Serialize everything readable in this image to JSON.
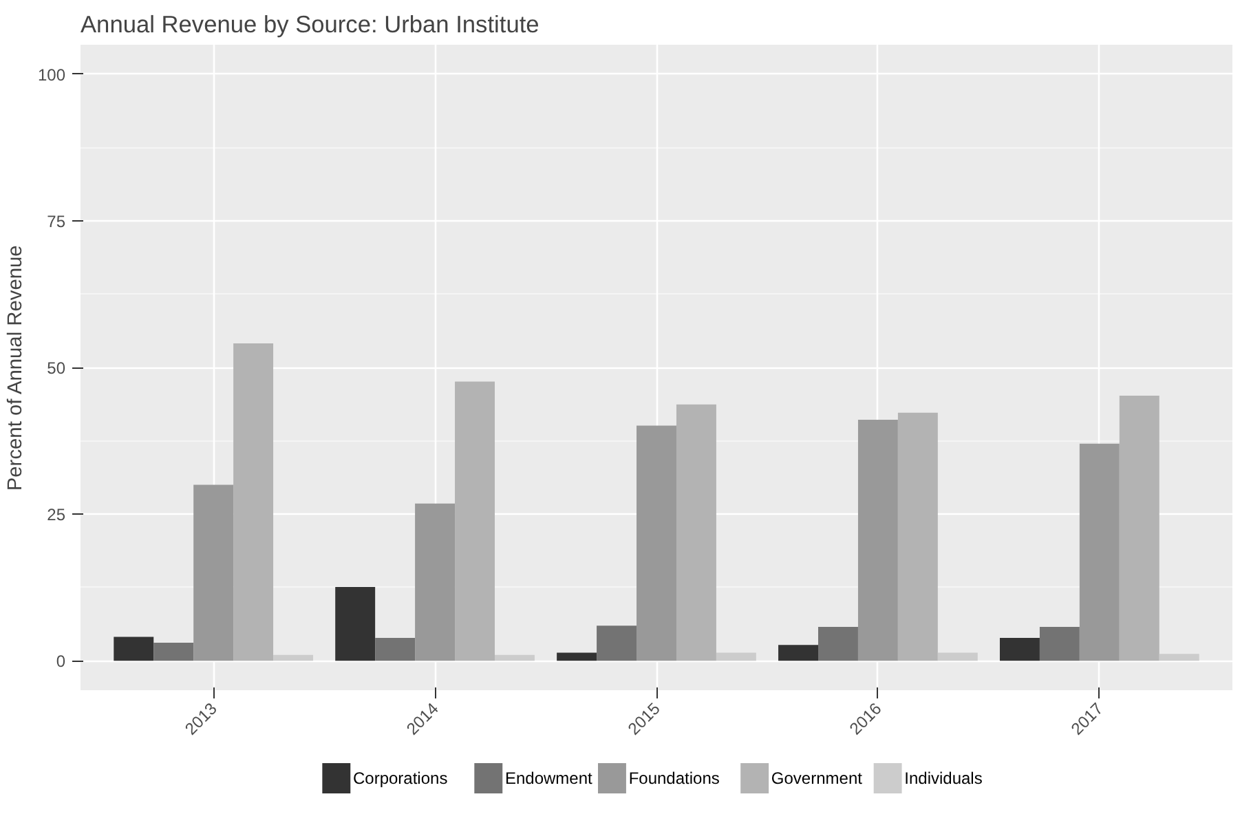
{
  "chart_data": {
    "type": "bar",
    "title": "Annual Revenue by Source: Urban Institute",
    "ylabel": "Percent of Annual Revenue",
    "categories": [
      "2013",
      "2014",
      "2015",
      "2016",
      "2017"
    ],
    "series": [
      {
        "name": "Corporations",
        "color": "#333333",
        "values": [
          4.1,
          12.6,
          1.4,
          2.7,
          3.9
        ]
      },
      {
        "name": "Endowment",
        "color": "#737373",
        "values": [
          3.1,
          3.9,
          6.0,
          5.8,
          5.8
        ]
      },
      {
        "name": "Foundations",
        "color": "#999999",
        "values": [
          30.0,
          26.8,
          40.1,
          41.1,
          37.0
        ]
      },
      {
        "name": "Government",
        "color": "#b3b3b3",
        "values": [
          54.1,
          47.6,
          43.7,
          42.3,
          45.2
        ]
      },
      {
        "name": "Individuals",
        "color": "#cccccc",
        "values": [
          1.0,
          1.0,
          1.4,
          1.4,
          1.2
        ]
      }
    ],
    "ylim": [
      -5,
      105
    ],
    "yticks": [
      0,
      25,
      50,
      75,
      100
    ],
    "grid": true,
    "legend": "bottom"
  }
}
